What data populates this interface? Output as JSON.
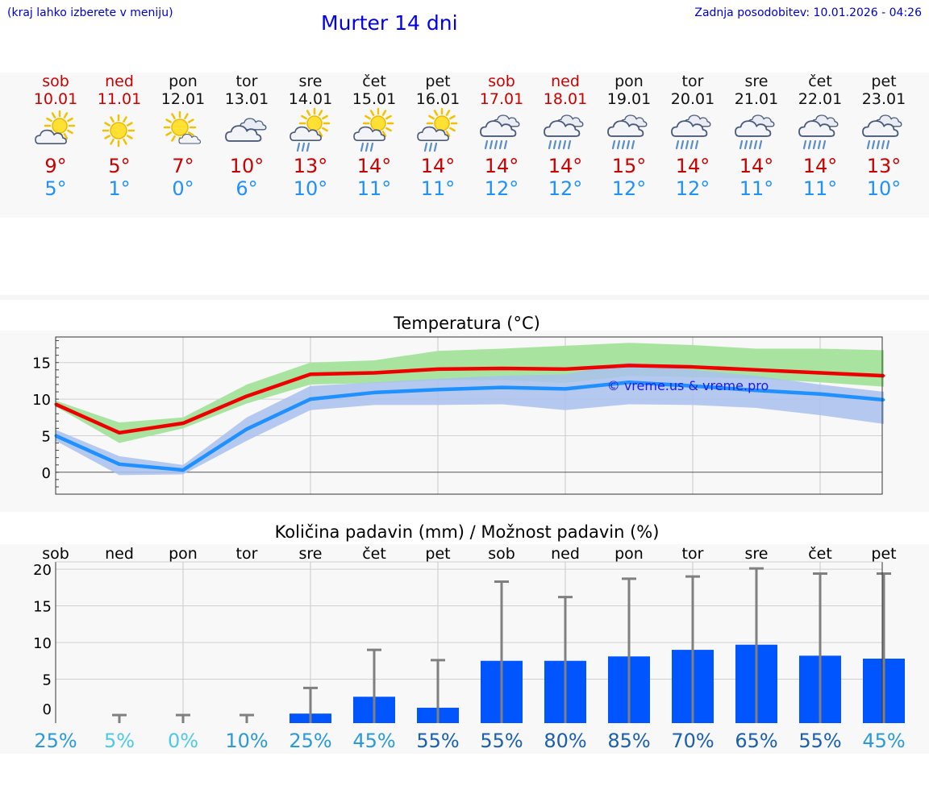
{
  "header": {
    "note": "(kraj lahko izberete v meniju)",
    "title": "Murter 14 dni",
    "updated": "Zadnja posodobitev: 10.01.2026 - 04:26"
  },
  "days": [
    {
      "name": "sob",
      "date": "10.01",
      "weekend": true,
      "icon": "sun-cloud-icon",
      "max": "9°",
      "min": "5°"
    },
    {
      "name": "ned",
      "date": "11.01",
      "weekend": true,
      "icon": "sun-icon",
      "max": "5°",
      "min": "1°"
    },
    {
      "name": "pon",
      "date": "12.01",
      "weekend": false,
      "icon": "sun-small-cloud-icon",
      "max": "7°",
      "min": "0°"
    },
    {
      "name": "tor",
      "date": "13.01",
      "weekend": false,
      "icon": "cloudy-icon",
      "max": "10°",
      "min": "6°"
    },
    {
      "name": "sre",
      "date": "14.01",
      "weekend": false,
      "icon": "sun-cloud-rain-icon",
      "max": "13°",
      "min": "10°"
    },
    {
      "name": "čet",
      "date": "15.01",
      "weekend": false,
      "icon": "sun-cloud-rain-icon",
      "max": "14°",
      "min": "11°"
    },
    {
      "name": "pet",
      "date": "16.01",
      "weekend": false,
      "icon": "sun-cloud-rain-icon",
      "max": "14°",
      "min": "11°"
    },
    {
      "name": "sob",
      "date": "17.01",
      "weekend": true,
      "icon": "cloud-rain-icon",
      "max": "14°",
      "min": "12°"
    },
    {
      "name": "ned",
      "date": "18.01",
      "weekend": true,
      "icon": "cloud-rain-icon",
      "max": "14°",
      "min": "12°"
    },
    {
      "name": "pon",
      "date": "19.01",
      "weekend": false,
      "icon": "cloud-rain-icon",
      "max": "15°",
      "min": "12°"
    },
    {
      "name": "tor",
      "date": "20.01",
      "weekend": false,
      "icon": "cloud-rain-icon",
      "max": "14°",
      "min": "12°"
    },
    {
      "name": "sre",
      "date": "21.01",
      "weekend": false,
      "icon": "cloud-rain-icon",
      "max": "14°",
      "min": "11°"
    },
    {
      "name": "čet",
      "date": "22.01",
      "weekend": false,
      "icon": "cloud-rain-icon",
      "max": "14°",
      "min": "11°"
    },
    {
      "name": "pet",
      "date": "23.01",
      "weekend": false,
      "icon": "cloud-rain-icon",
      "max": "13°",
      "min": "10°"
    }
  ],
  "colors": {
    "max_line": "#ee0000",
    "min_line": "#1e90ff",
    "max_band": "#a8e4a0",
    "min_band": "#a9c1ee",
    "overlap_band": "#7cc4a8",
    "bar": "#0055ff",
    "err": "#808080",
    "pct_light": "#4fc9e8",
    "pct_mid": "#2a9ad8",
    "pct_dark": "#1a5fb0"
  },
  "chart_data": [
    {
      "type": "line",
      "title": "Temperatura (°C)",
      "categories": [
        "10.01",
        "11.01",
        "12.01",
        "13.01",
        "14.01",
        "15.01",
        "16.01",
        "17.01",
        "18.01",
        "19.01",
        "20.01",
        "21.01",
        "22.01",
        "23.01"
      ],
      "ylim": [
        -3,
        18.5
      ],
      "yticks": [
        0,
        5,
        10,
        15
      ],
      "watermark": "© vreme.us & vreme.pro",
      "series": [
        {
          "name": "max",
          "values": [
            9.3,
            5.4,
            6.7,
            10.4,
            13.4,
            13.6,
            14.1,
            14.2,
            14.1,
            14.6,
            14.4,
            14.0,
            13.6,
            13.2
          ]
        },
        {
          "name": "min",
          "values": [
            5.0,
            1.1,
            0.3,
            5.9,
            10.0,
            10.9,
            11.3,
            11.6,
            11.4,
            12.3,
            11.8,
            11.2,
            10.7,
            9.9
          ]
        },
        {
          "name": "max_band_hi",
          "values": [
            9.8,
            6.8,
            7.5,
            12.0,
            15.0,
            15.3,
            16.6,
            16.9,
            17.3,
            17.7,
            17.4,
            16.9,
            16.9,
            16.7
          ]
        },
        {
          "name": "max_band_lo",
          "values": [
            9.0,
            4.0,
            6.0,
            9.4,
            12.0,
            12.2,
            12.6,
            12.6,
            12.2,
            13.2,
            13.0,
            12.8,
            12.3,
            11.7
          ]
        },
        {
          "name": "min_band_hi",
          "values": [
            5.8,
            2.2,
            1.0,
            7.5,
            11.8,
            12.3,
            12.8,
            13.2,
            13.4,
            15.0,
            14.0,
            13.2,
            12.0,
            11.0
          ]
        },
        {
          "name": "min_band_lo",
          "values": [
            4.3,
            -0.4,
            -0.3,
            4.3,
            8.5,
            9.2,
            9.2,
            9.3,
            8.5,
            9.3,
            9.2,
            8.8,
            7.8,
            6.6
          ]
        }
      ]
    },
    {
      "type": "bar",
      "title": "Količina padavin (mm) / Možnost padavin (%)",
      "categories": [
        "sob",
        "ned",
        "pon",
        "tor",
        "sre",
        "čet",
        "pet",
        "sob",
        "ned",
        "pon",
        "tor",
        "sre",
        "čet",
        "pet"
      ],
      "ylim": [
        -1,
        21
      ],
      "yticks": [
        0,
        5,
        10,
        15,
        20
      ],
      "values": [
        0,
        0,
        0,
        0,
        0.3,
        2.6,
        1.1,
        7.5,
        7.5,
        8.1,
        9.0,
        9.7,
        8.2,
        7.8
      ],
      "error_high": [
        0,
        0.1,
        0.1,
        0.1,
        3.8,
        9.0,
        7.6,
        18.3,
        16.2,
        18.7,
        19.0,
        20.1,
        19.4,
        19.4
      ],
      "probability": [
        "25%",
        "5%",
        "0%",
        "10%",
        "25%",
        "45%",
        "55%",
        "55%",
        "80%",
        "85%",
        "70%",
        "65%",
        "55%",
        "45%"
      ],
      "probability_tone": [
        "mid",
        "light",
        "light",
        "mid",
        "mid",
        "mid",
        "dark",
        "dark",
        "dark",
        "dark",
        "dark",
        "dark",
        "dark",
        "mid"
      ]
    }
  ]
}
